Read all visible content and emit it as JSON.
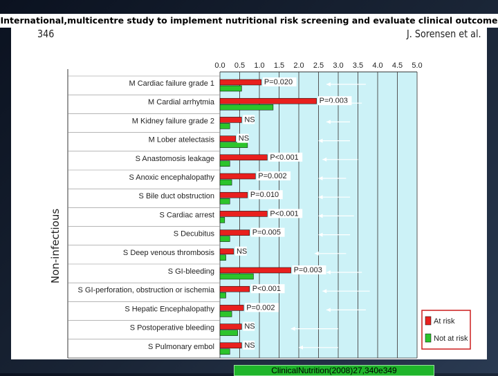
{
  "slide": {
    "title": "International,multicentre study to implement nutritional risk screening and evaluate clinical outcome",
    "citation": "ClinicalNutrition(2008)27,340e349"
  },
  "figure": {
    "page_number": "346",
    "authors": "J. Sorensen et al.",
    "category_label": "Non-infectious"
  },
  "chart_data": {
    "type": "bar",
    "orientation": "horizontal",
    "xlim": [
      0,
      5.0
    ],
    "x_ticks": [
      "0.0",
      "0.5",
      "1.0",
      "1.5",
      "2.0",
      "2.5",
      "3.0",
      "3.5",
      "4.0",
      "4.5",
      "5.0"
    ],
    "x_axis_position": "top",
    "grid": "vertical",
    "plot_background": "#ccf2f7",
    "legend_placement": "bottom-right",
    "categories": [
      "M Cardiac failure grade 1",
      "M Cardial arrhytmia",
      "M Kidney failure grade 2",
      "M Lober atelectasis",
      "S Anastomosis leakage",
      "S Anoxic encephalopathy",
      "S Bile duct obstruction",
      "S Cardiac arrest",
      "S Decubitus",
      "S Deep venous thrombosis",
      "S GI-bleeding",
      "S GI-perforation, obstruction or ischemia",
      "S Hepatic Encephalopathy",
      "S Postoperative bleeding",
      "S Pulmonary embol"
    ],
    "series": [
      {
        "name": "At risk",
        "color": "#e8201e",
        "values": [
          1.05,
          2.45,
          0.55,
          0.4,
          1.2,
          0.9,
          0.7,
          1.2,
          0.75,
          0.35,
          1.8,
          0.75,
          0.6,
          0.55,
          0.55
        ]
      },
      {
        "name": "Not at risk",
        "color": "#2cc42c",
        "values": [
          0.55,
          1.35,
          0.25,
          0.7,
          0.25,
          0.3,
          0.25,
          0.12,
          0.25,
          0.15,
          0.85,
          0.15,
          0.3,
          0.45,
          0.25
        ]
      }
    ],
    "p_values": [
      "P=0.020",
      "P=0.003",
      "NS",
      "NS",
      "P<0.001",
      "P=0.002",
      "P=0.010",
      "P<0.001",
      "P=0.005",
      "NS",
      "P=0.003",
      "P<0.001",
      "P=0.002",
      "NS",
      "NS"
    ],
    "arrow_markers": [
      [
        2.7,
        3.7
      ],
      [
        2.7,
        3.6
      ],
      [
        2.7,
        3.3
      ],
      [
        2.5,
        3.3
      ],
      [
        2.6,
        3.5
      ],
      [
        2.5,
        3.2
      ],
      [
        2.5,
        3.3
      ],
      [
        2.5,
        3.4
      ],
      [
        2.5,
        3.3
      ],
      [
        2.4,
        3.2
      ],
      [
        2.7,
        3.6
      ],
      [
        2.6,
        3.8
      ],
      [
        2.7,
        3.7
      ],
      [
        1.8,
        3.0
      ],
      [
        2.0,
        3.0
      ]
    ]
  }
}
